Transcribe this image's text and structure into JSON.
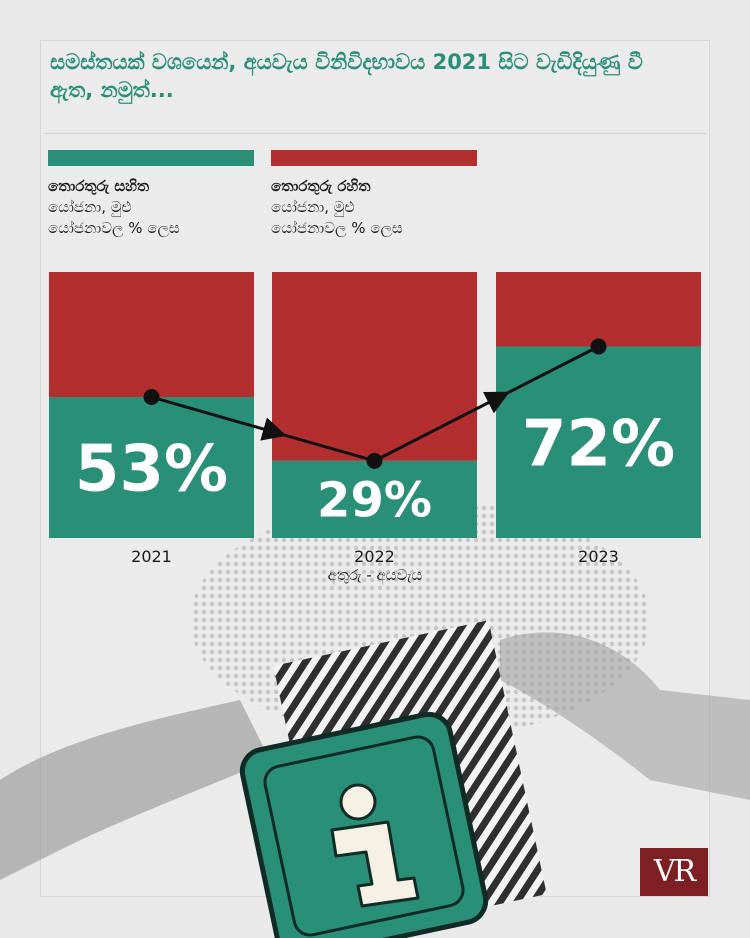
{
  "title": "සමස්තයක් වශයෙන්, අයවැය විනිවිදභාවය 2021 සිට වැඩිදියුණු වී ඇත, නමුත්...",
  "legend": {
    "with_info": {
      "line1": "තොරතුරු සහිත",
      "line2": "යෝජනා, මුළු",
      "line3": "යෝජනාවල % ලෙස",
      "color": "#2a8f77"
    },
    "without_info": {
      "line1": "තොරතුරු රහිත",
      "line2": "යෝජනා, මුළු",
      "line3": "යෝජනාවල % ලෙස",
      "color": "#b32e2e"
    }
  },
  "logo_text": "VR",
  "chart_data": {
    "type": "bar",
    "stacked": true,
    "categories": [
      "2021",
      "2022",
      "2023"
    ],
    "series": [
      {
        "name": "තොරතුරු සහිත",
        "values": [
          53,
          29,
          72
        ],
        "color": "#2a8f77"
      },
      {
        "name": "තොරතුරු රහිත",
        "values": [
          47,
          71,
          28
        ],
        "color": "#b32e2e"
      }
    ],
    "value_labels": [
      "53%",
      "29%",
      "72%"
    ],
    "xlabel": "අතුරු - අයවැය",
    "ylim": [
      0,
      100
    ],
    "trend_line": true,
    "grid": false
  }
}
